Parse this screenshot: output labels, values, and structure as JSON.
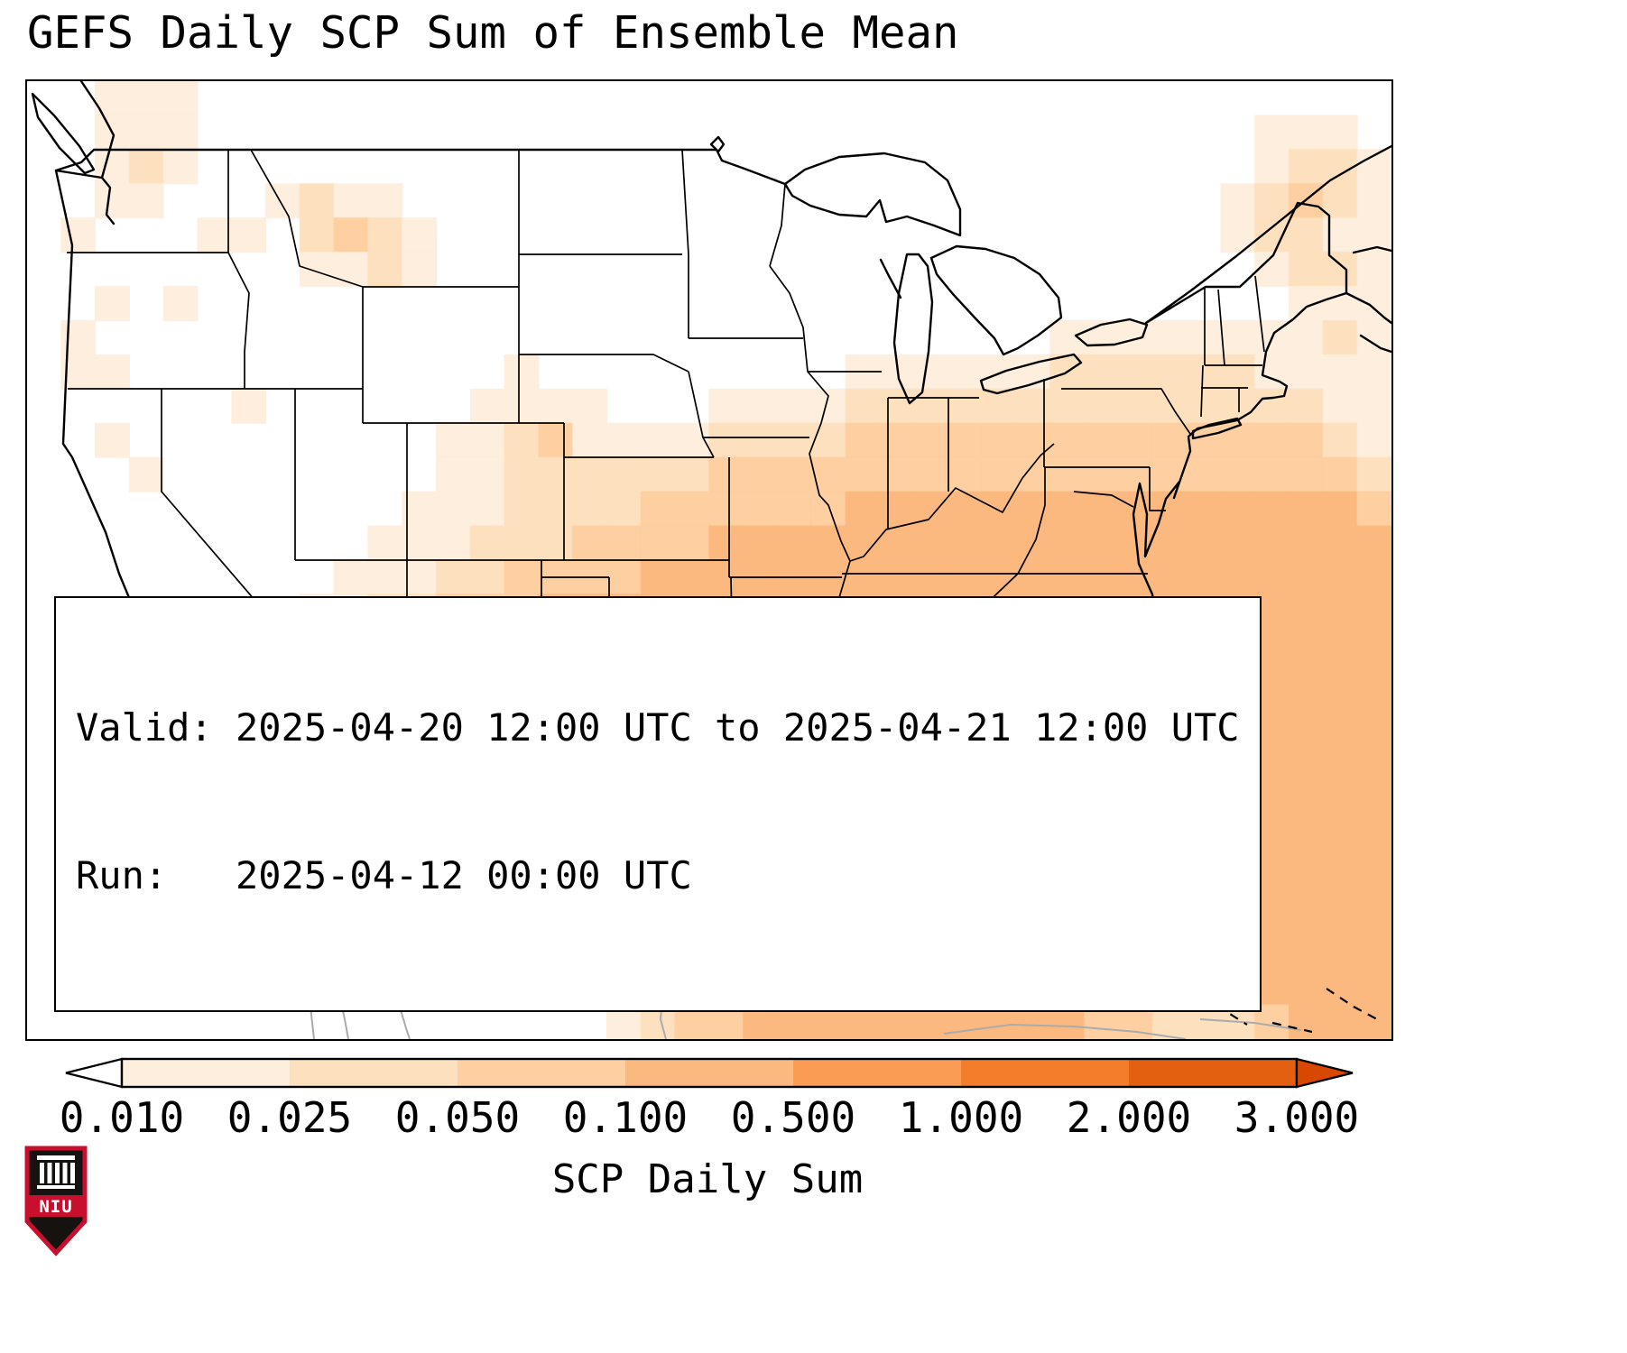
{
  "title": "GEFS Daily SCP Sum of Ensemble Mean",
  "info": {
    "valid": "Valid: 2025-04-20 12:00 UTC to 2025-04-21 12:00 UTC",
    "run": "Run:   2025-04-12 00:00 UTC"
  },
  "colorbar": {
    "label": "SCP Daily Sum",
    "ticks": [
      "0.010",
      "0.025",
      "0.050",
      "0.100",
      "0.500",
      "1.000",
      "2.000",
      "3.000"
    ],
    "segment_colors": [
      "#fdeedd",
      "#fde0bd",
      "#fdcfa1",
      "#fcb97f",
      "#fa9c54",
      "#f47d2c",
      "#e2600f"
    ],
    "under_color": "#ffffff",
    "over_color": "#d94801"
  },
  "logo": {
    "text": "NIU",
    "accent": "#c8102e",
    "shield": "#16120f"
  },
  "heatmap": {
    "comment": "40x28 grid of SCP level codes 0-7; 0 = below 0.010 (white), 1-7 map to colorbar segments",
    "levels": [
      "#fdeedd",
      "#fde0bd",
      "#fdcfa1",
      "#fcb97f",
      "#fa9c54",
      "#f47d2c",
      "#e2600f"
    ],
    "rows": [
      "0011100000000000000000000000000000000000",
      "0011100000000000000000000000000000001110",
      "0012100000000000000000000000000000001221",
      "0011000121100000000000000000000000012321",
      "0100011023210000000000000000000000012211",
      "0000000011210000000000000000000000001221",
      "0010100000000000000000000000000000000111",
      "0100000000000000000000000000001111111121",
      "0110000000000010000000001111112222221111",
      "0000001000000111100011112222222222222211",
      "0010000000001123111122223333333333333321",
      "0001000000001122222233333333333333333332",
      "0000000000011122223333334444444444444443",
      "0000000000111222333344444444444444444444",
      "0000000001112233334444444444444444444444",
      "0000000011223334444444444444444444444444",
      "0000000011223334555444444444444444444444",
      "0000000011223334555555444444444444444444",
      "0000000001223344566655444444444444444444",
      "0000000000123345566555655544444444444444",
      "0000000000012345676556665544433444444444",
      "0000000000001234566655666544322444444444",
      "0000000000001234555555555443212444444444",
      "0000000000000123445555544444222444444444",
      "0000000000000012344445555444444444444444",
      "0000000000000001234444444444444443334444",
      "0000000000000000123444444444444433224444",
      "0000000000000000012334444444444332223444"
    ]
  }
}
